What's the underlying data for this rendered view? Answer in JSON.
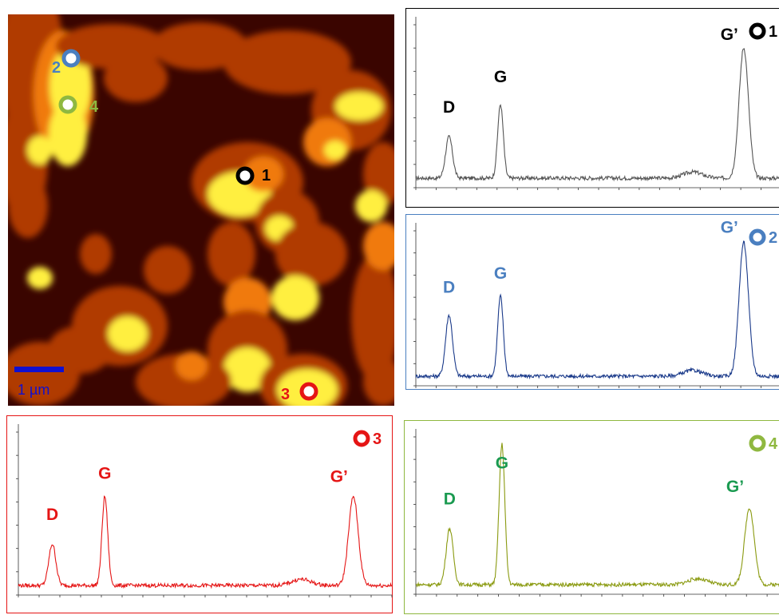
{
  "map": {
    "scale_bar_label": "1 µm",
    "colors": {
      "dark": "#3a0500",
      "mid": "#b03a00",
      "hot": "#f07a10",
      "bright": "#ffef40",
      "scale": "#1010d0"
    },
    "markers": [
      {
        "id": "1",
        "label": "1",
        "color": "#000000"
      },
      {
        "id": "2",
        "label": "2",
        "color": "#4a7fc0"
      },
      {
        "id": "3",
        "label": "3",
        "color": "#e51515"
      },
      {
        "id": "4",
        "label": "4",
        "color": "#8fb840"
      }
    ]
  },
  "chart_data": [
    {
      "type": "line",
      "marker": "1",
      "color": "#000000",
      "line_color": "#555555",
      "peaks": [
        {
          "label": "D",
          "x": 1350,
          "height": 0.27
        },
        {
          "label": "G",
          "x": 1582,
          "height": 0.48
        },
        {
          "label": "G’",
          "x": 2680,
          "height": 0.85
        }
      ],
      "xlim": [
        1200,
        2850
      ]
    },
    {
      "type": "line",
      "marker": "2",
      "color": "#4a7fc0",
      "line_color": "#1a3a8a",
      "peaks": [
        {
          "label": "D",
          "x": 1350,
          "height": 0.42
        },
        {
          "label": "G",
          "x": 1582,
          "height": 0.55
        },
        {
          "label": "G’",
          "x": 2680,
          "height": 0.92
        }
      ],
      "xlim": [
        1200,
        2850
      ]
    },
    {
      "type": "line",
      "marker": "3",
      "color": "#e51515",
      "line_color": "#e51515",
      "peaks": [
        {
          "label": "D",
          "x": 1350,
          "height": 0.27
        },
        {
          "label": "G",
          "x": 1582,
          "height": 0.58
        },
        {
          "label": "G’",
          "x": 2680,
          "height": 0.58
        }
      ],
      "xlim": [
        1200,
        2850
      ]
    },
    {
      "type": "line",
      "marker": "4",
      "color": "#8fb840",
      "line_color": "#8a9a10",
      "label_color": "#1a9a50",
      "peaks": [
        {
          "label": "D",
          "x": 1350,
          "height": 0.38
        },
        {
          "label": "G",
          "x": 1582,
          "height": 0.95
        },
        {
          "label": "G’",
          "x": 2680,
          "height": 0.52
        }
      ],
      "xlim": [
        1200,
        2850
      ]
    }
  ]
}
